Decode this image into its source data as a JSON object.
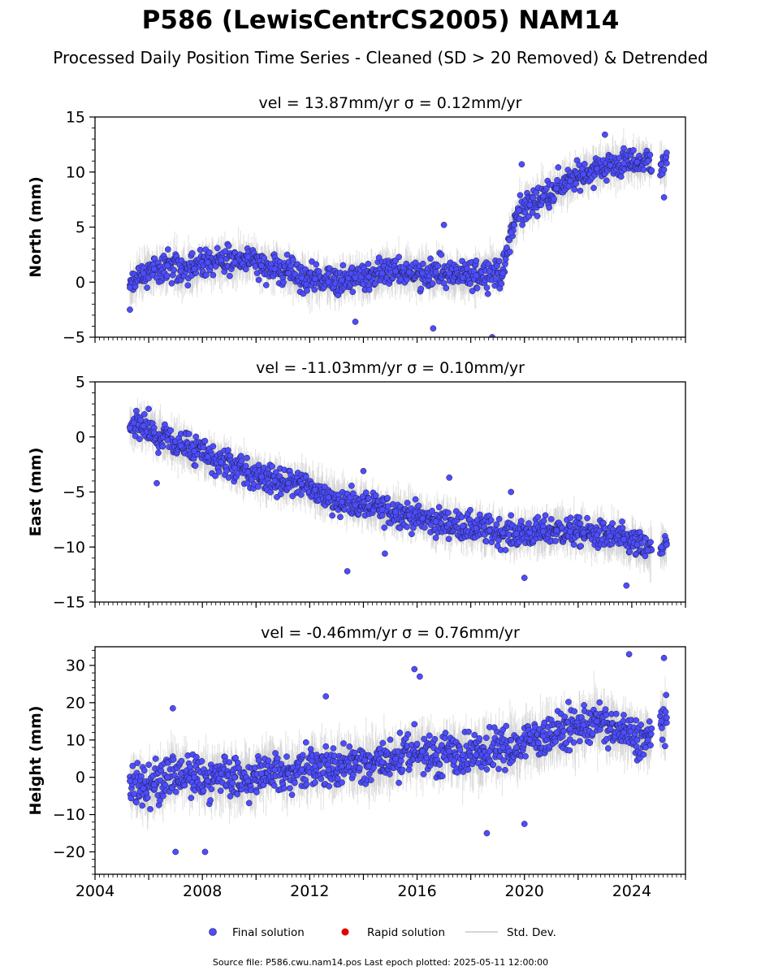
{
  "figure": {
    "title": "P586 (LewisCentrCS2005) NAM14",
    "subtitle": "Processed Daily Position Time Series - Cleaned (SD > 20 Removed) & Detrended",
    "footer": "Source file: P586.cwu.nam14.pos  Last epoch plotted: 2025-05-11 12:00:00",
    "colors": {
      "final": "#4d4dff",
      "final_edge": "#1a1a40",
      "rapid": "#e00000",
      "std": "#c8c8c8"
    }
  },
  "legend": {
    "placement": "bottom-center",
    "items": [
      {
        "label": "Final solution",
        "color": "#4d4dff"
      },
      {
        "label": "Rapid solution",
        "color": "#e00000"
      },
      {
        "label": "Std. Dev.",
        "color": "#c8c8c8"
      }
    ]
  },
  "chart_data": [
    {
      "type": "scatter",
      "title": "vel = 13.87mm/yr   σ = 0.12mm/yr",
      "ylabel": "North (mm)",
      "xlabel": "",
      "xlim": [
        2004.0,
        2026.0
      ],
      "ylim": [
        -5,
        15
      ],
      "yticks": [
        -5,
        0,
        5,
        10,
        15
      ],
      "xticks": [
        2004,
        2008,
        2012,
        2016,
        2020,
        2024
      ],
      "show_xtick_labels": false,
      "series": [
        {
          "name": "Final solution",
          "points": [
            [
              2005.3,
              -0.5
            ],
            [
              2005.8,
              0.8
            ],
            [
              2006.2,
              1.2
            ],
            [
              2006.7,
              1.5
            ],
            [
              2007.2,
              1.0
            ],
            [
              2007.7,
              1.2
            ],
            [
              2008.2,
              1.8
            ],
            [
              2008.7,
              2.0
            ],
            [
              2009.2,
              1.8
            ],
            [
              2009.7,
              2.3
            ],
            [
              2010.2,
              1.5
            ],
            [
              2010.7,
              1.2
            ],
            [
              2011.2,
              0.8
            ],
            [
              2011.7,
              0.4
            ],
            [
              2012.2,
              0.3
            ],
            [
              2012.7,
              0.0
            ],
            [
              2013.2,
              0.2
            ],
            [
              2013.7,
              0.4
            ],
            [
              2014.2,
              0.5
            ],
            [
              2014.7,
              0.8
            ],
            [
              2015.2,
              1.0
            ],
            [
              2015.7,
              0.9
            ],
            [
              2016.2,
              0.8
            ],
            [
              2016.7,
              0.9
            ],
            [
              2017.2,
              0.8
            ],
            [
              2017.7,
              0.4
            ],
            [
              2018.2,
              0.6
            ],
            [
              2018.7,
              1.0
            ],
            [
              2019.2,
              0.8
            ],
            [
              2019.5,
              4.5
            ],
            [
              2019.8,
              6.5
            ],
            [
              2020.2,
              7.0
            ],
            [
              2020.7,
              7.8
            ],
            [
              2021.2,
              8.5
            ],
            [
              2021.7,
              9.2
            ],
            [
              2022.2,
              9.8
            ],
            [
              2022.7,
              10.3
            ],
            [
              2023.2,
              10.6
            ],
            [
              2023.7,
              10.8
            ],
            [
              2024.2,
              10.9
            ],
            [
              2024.6,
              11.0
            ],
            [
              2025.1,
              10.7
            ],
            [
              2025.3,
              10.8
            ]
          ]
        },
        {
          "name": "Rapid solution",
          "points": []
        }
      ],
      "outliers": [
        [
          2005.3,
          -2.5
        ],
        [
          2016.6,
          -4.2
        ],
        [
          2018.8,
          -5.0
        ],
        [
          2017.0,
          5.2
        ],
        [
          2013.7,
          -3.6
        ],
        [
          2019.9,
          10.7
        ],
        [
          2023.0,
          13.4
        ],
        [
          2025.2,
          7.7
        ]
      ]
    },
    {
      "type": "scatter",
      "title": "vel = -11.03mm/yr   σ = 0.10mm/yr",
      "ylabel": "East (mm)",
      "xlabel": "",
      "xlim": [
        2004.0,
        2026.0
      ],
      "ylim": [
        -15,
        5
      ],
      "yticks": [
        -15,
        -10,
        -5,
        0,
        5
      ],
      "xticks": [
        2004,
        2008,
        2012,
        2016,
        2020,
        2024
      ],
      "show_xtick_labels": false,
      "series": [
        {
          "name": "Final solution",
          "points": [
            [
              2005.3,
              0.8
            ],
            [
              2005.8,
              1.0
            ],
            [
              2006.2,
              0.4
            ],
            [
              2006.7,
              -0.3
            ],
            [
              2007.2,
              -0.8
            ],
            [
              2007.7,
              -1.3
            ],
            [
              2008.2,
              -1.8
            ],
            [
              2008.7,
              -2.3
            ],
            [
              2009.2,
              -2.8
            ],
            [
              2009.7,
              -3.2
            ],
            [
              2010.2,
              -3.6
            ],
            [
              2010.7,
              -4.0
            ],
            [
              2011.2,
              -4.2
            ],
            [
              2011.7,
              -4.3
            ],
            [
              2012.2,
              -4.8
            ],
            [
              2012.7,
              -5.5
            ],
            [
              2013.2,
              -5.9
            ],
            [
              2013.7,
              -6.2
            ],
            [
              2014.2,
              -6.3
            ],
            [
              2014.7,
              -6.6
            ],
            [
              2015.2,
              -6.8
            ],
            [
              2015.7,
              -7.1
            ],
            [
              2016.2,
              -7.4
            ],
            [
              2016.7,
              -7.7
            ],
            [
              2017.2,
              -7.9
            ],
            [
              2017.7,
              -8.1
            ],
            [
              2018.2,
              -8.3
            ],
            [
              2018.7,
              -8.5
            ],
            [
              2019.2,
              -8.7
            ],
            [
              2019.7,
              -8.8
            ],
            [
              2020.2,
              -8.7
            ],
            [
              2020.7,
              -8.6
            ],
            [
              2021.2,
              -8.5
            ],
            [
              2021.7,
              -8.6
            ],
            [
              2022.2,
              -8.7
            ],
            [
              2022.7,
              -8.9
            ],
            [
              2023.2,
              -9.0
            ],
            [
              2023.7,
              -9.3
            ],
            [
              2024.2,
              -9.8
            ],
            [
              2024.6,
              -10.3
            ],
            [
              2025.1,
              -10.0
            ],
            [
              2025.3,
              -9.8
            ]
          ]
        },
        {
          "name": "Rapid solution",
          "points": []
        }
      ],
      "outliers": [
        [
          2006.3,
          -4.2
        ],
        [
          2013.4,
          -12.2
        ],
        [
          2014.0,
          -3.1
        ],
        [
          2017.2,
          -3.7
        ],
        [
          2019.5,
          -5.0
        ],
        [
          2020.0,
          -12.8
        ],
        [
          2023.8,
          -13.5
        ],
        [
          2014.8,
          -10.6
        ]
      ]
    },
    {
      "type": "scatter",
      "title": "vel = -0.46mm/yr   σ = 0.76mm/yr",
      "ylabel": "Height (mm)",
      "xlabel": "",
      "xlim": [
        2004.0,
        2026.0
      ],
      "ylim": [
        -26,
        35
      ],
      "yticks": [
        -20,
        -10,
        0,
        10,
        20,
        30
      ],
      "xticks": [
        2004,
        2008,
        2012,
        2016,
        2020,
        2024
      ],
      "xtick_labels": [
        "2004",
        "2008",
        "2012",
        "2016",
        "2020",
        "2024"
      ],
      "show_xtick_labels": true,
      "series": [
        {
          "name": "Final solution",
          "points": [
            [
              2005.3,
              -1.0
            ],
            [
              2005.8,
              -3.0
            ],
            [
              2006.2,
              -2.0
            ],
            [
              2006.7,
              0.0
            ],
            [
              2007.2,
              1.0
            ],
            [
              2007.7,
              0.0
            ],
            [
              2008.2,
              -1.0
            ],
            [
              2008.7,
              1.0
            ],
            [
              2009.2,
              0.0
            ],
            [
              2009.7,
              -1.0
            ],
            [
              2010.2,
              1.0
            ],
            [
              2010.7,
              2.0
            ],
            [
              2011.2,
              1.0
            ],
            [
              2011.7,
              2.0
            ],
            [
              2012.2,
              3.0
            ],
            [
              2012.7,
              2.0
            ],
            [
              2013.2,
              3.0
            ],
            [
              2013.7,
              4.0
            ],
            [
              2014.2,
              3.0
            ],
            [
              2014.7,
              4.0
            ],
            [
              2015.2,
              5.0
            ],
            [
              2015.7,
              6.0
            ],
            [
              2016.2,
              7.0
            ],
            [
              2016.7,
              6.0
            ],
            [
              2017.2,
              7.0
            ],
            [
              2017.7,
              6.0
            ],
            [
              2018.2,
              6.0
            ],
            [
              2018.7,
              7.0
            ],
            [
              2019.2,
              8.0
            ],
            [
              2019.7,
              8.0
            ],
            [
              2020.2,
              10.0
            ],
            [
              2020.7,
              11.0
            ],
            [
              2021.2,
              12.0
            ],
            [
              2021.7,
              13.0
            ],
            [
              2022.2,
              14.0
            ],
            [
              2022.7,
              15.0
            ],
            [
              2023.2,
              13.0
            ],
            [
              2023.7,
              12.0
            ],
            [
              2024.2,
              10.0
            ],
            [
              2024.6,
              10.0
            ],
            [
              2025.1,
              15.0
            ],
            [
              2025.3,
              16.0
            ]
          ]
        },
        {
          "name": "Rapid solution",
          "points": []
        }
      ],
      "outliers": [
        [
          2007.0,
          -20.0
        ],
        [
          2008.1,
          -20.0
        ],
        [
          2012.6,
          21.7
        ],
        [
          2015.9,
          29.0
        ],
        [
          2016.1,
          27.0
        ],
        [
          2018.6,
          -15.0
        ],
        [
          2020.0,
          -12.5
        ],
        [
          2023.9,
          33.0
        ],
        [
          2025.2,
          32.0
        ],
        [
          2006.9,
          18.5
        ]
      ]
    }
  ]
}
